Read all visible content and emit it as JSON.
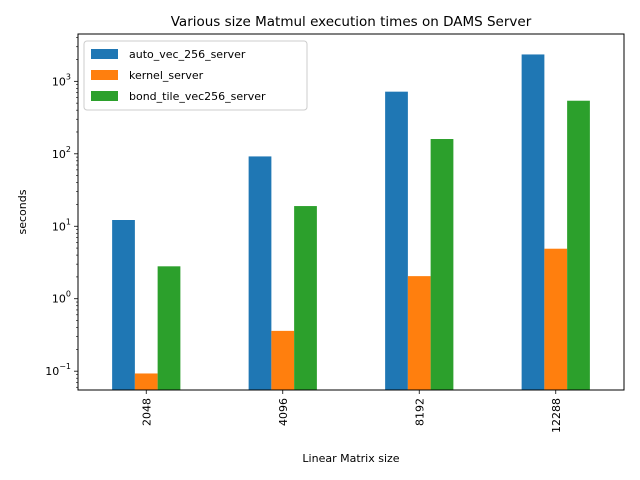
{
  "chart_data": {
    "type": "bar",
    "title": "Various size Matmul execution times on DAMS Server",
    "xlabel": "Linear Matrix size",
    "ylabel": "seconds",
    "yscale": "log",
    "ylim": [
      0.055,
      4500
    ],
    "y_ticks": [
      {
        "value": 0.1,
        "base": "10",
        "exp": "−1"
      },
      {
        "value": 1,
        "base": "10",
        "exp": "0"
      },
      {
        "value": 10,
        "base": "10",
        "exp": "1"
      },
      {
        "value": 100,
        "base": "10",
        "exp": "2"
      },
      {
        "value": 1000,
        "base": "10",
        "exp": "3"
      }
    ],
    "categories": [
      "2048",
      "4096",
      "8192",
      "12288"
    ],
    "series": [
      {
        "name": "auto_vec_256_server",
        "color": "#1f77b4",
        "values": [
          12.2,
          92,
          720,
          2350
        ]
      },
      {
        "name": "kernel_server",
        "color": "#ff7f0e",
        "values": [
          0.093,
          0.36,
          2.05,
          4.9
        ]
      },
      {
        "name": "bond_tile_vec256_server",
        "color": "#2ca02c",
        "values": [
          2.8,
          19,
          160,
          540
        ]
      }
    ],
    "legend_position": "upper-left",
    "grid": false
  }
}
